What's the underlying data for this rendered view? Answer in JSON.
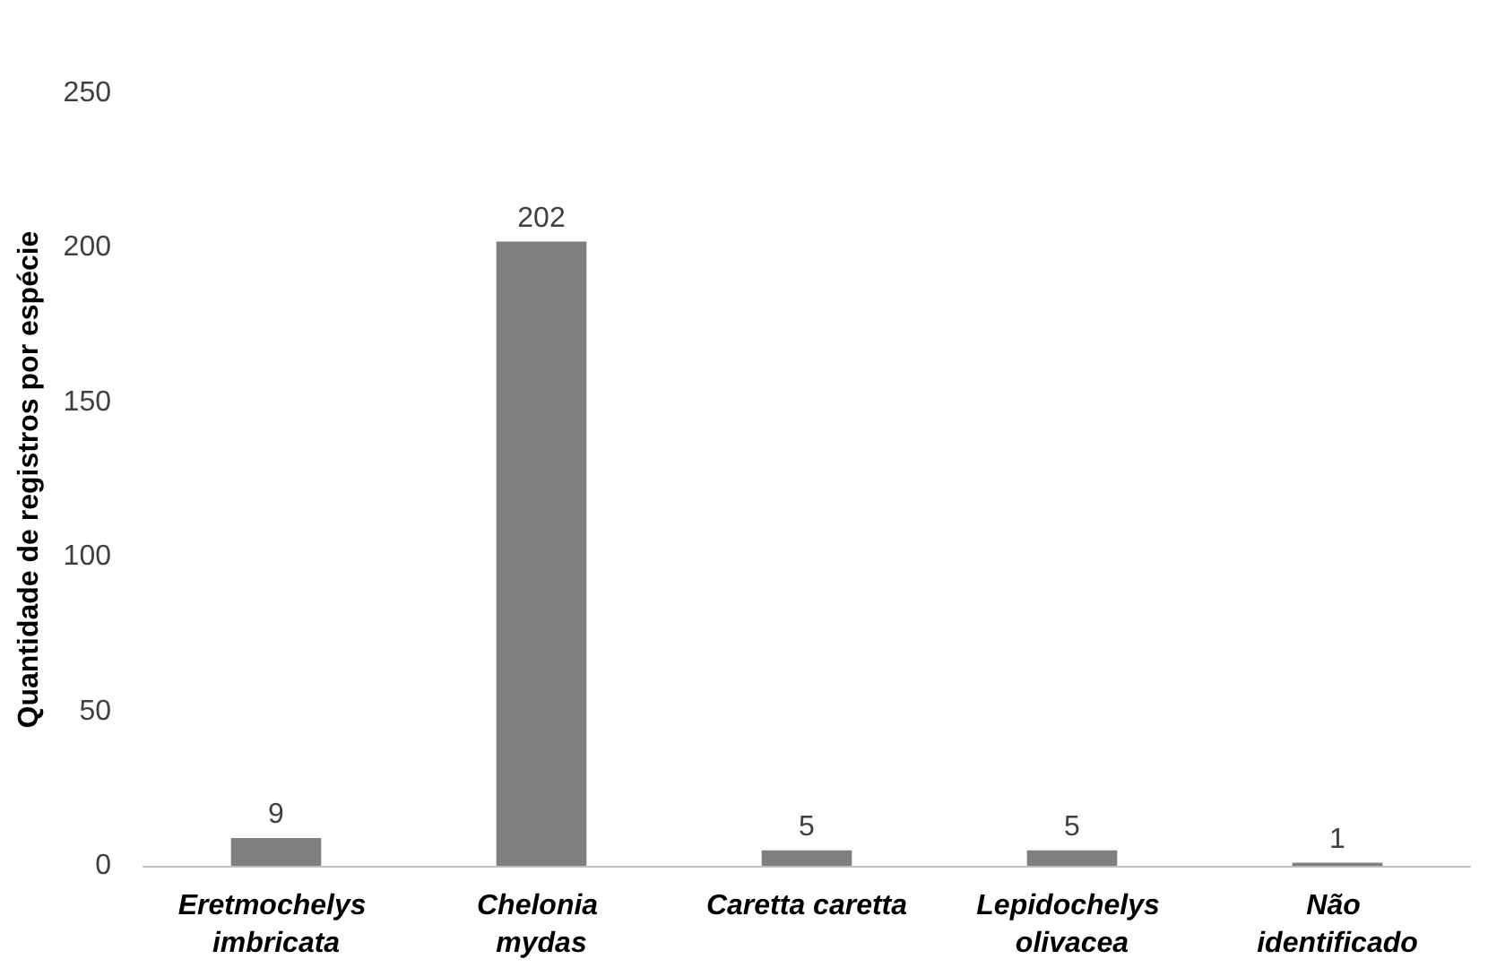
{
  "chart_data": {
    "type": "bar",
    "ylabel": "Quantidade de registros por espécie",
    "categories": [
      "Eretmochelys imbricata",
      "Chelonia mydas",
      "Caretta caretta",
      "Lepidochelys olivacea",
      "Não identificado"
    ],
    "values": [
      9,
      202,
      5,
      5,
      1
    ],
    "color": "#7f7f7f",
    "data_labels": true,
    "ylim": [
      0,
      250
    ],
    "yticks": [
      0,
      50,
      100,
      150,
      200,
      250
    ],
    "grid": false
  }
}
